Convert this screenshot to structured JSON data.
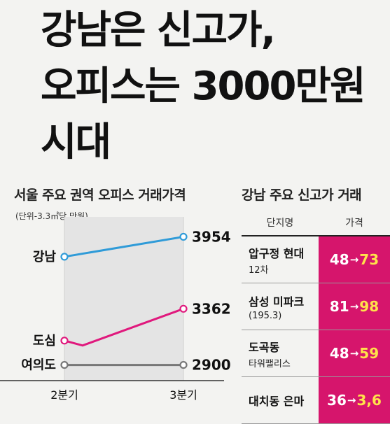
{
  "headline": {
    "line1": "강남은 신고가,",
    "line2": "오피스는 3000만원",
    "line3": "시대"
  },
  "chart_data": {
    "type": "line",
    "title": "서울 주요 권역 오피스 거래가격",
    "unit": "(단위-3.3㎡당 만원)",
    "categories": [
      "2분기",
      "3분기"
    ],
    "series": [
      {
        "name": "강남",
        "values": [
          3790,
          3954
        ],
        "color": "#2f9bd8",
        "end_label": "3954"
      },
      {
        "name": "도심",
        "values": [
          3100,
          3362
        ],
        "color": "#e0197d",
        "end_label": "3362",
        "dip": 3060
      },
      {
        "name": "여의도",
        "values": [
          2900,
          2900
        ],
        "color": "#777777",
        "end_label": "2900"
      }
    ],
    "ylim": [
      2840,
      4060
    ]
  },
  "table": {
    "title": "강남 주요 신고가 거래",
    "headers": [
      "단지명",
      "가격"
    ],
    "rows": [
      {
        "name": "압구정 현대",
        "sub": "12차",
        "from": "48",
        "to": "73"
      },
      {
        "name": "삼성 미파크",
        "sub": "(195.3)",
        "from": "81",
        "to": "98"
      },
      {
        "name": "도곡동",
        "sub": "타워팰리스",
        "from": "48",
        "to": "59"
      },
      {
        "name": "대치동 은마",
        "sub": "",
        "from": "36",
        "to": "3,6"
      }
    ],
    "arrow": "→"
  }
}
